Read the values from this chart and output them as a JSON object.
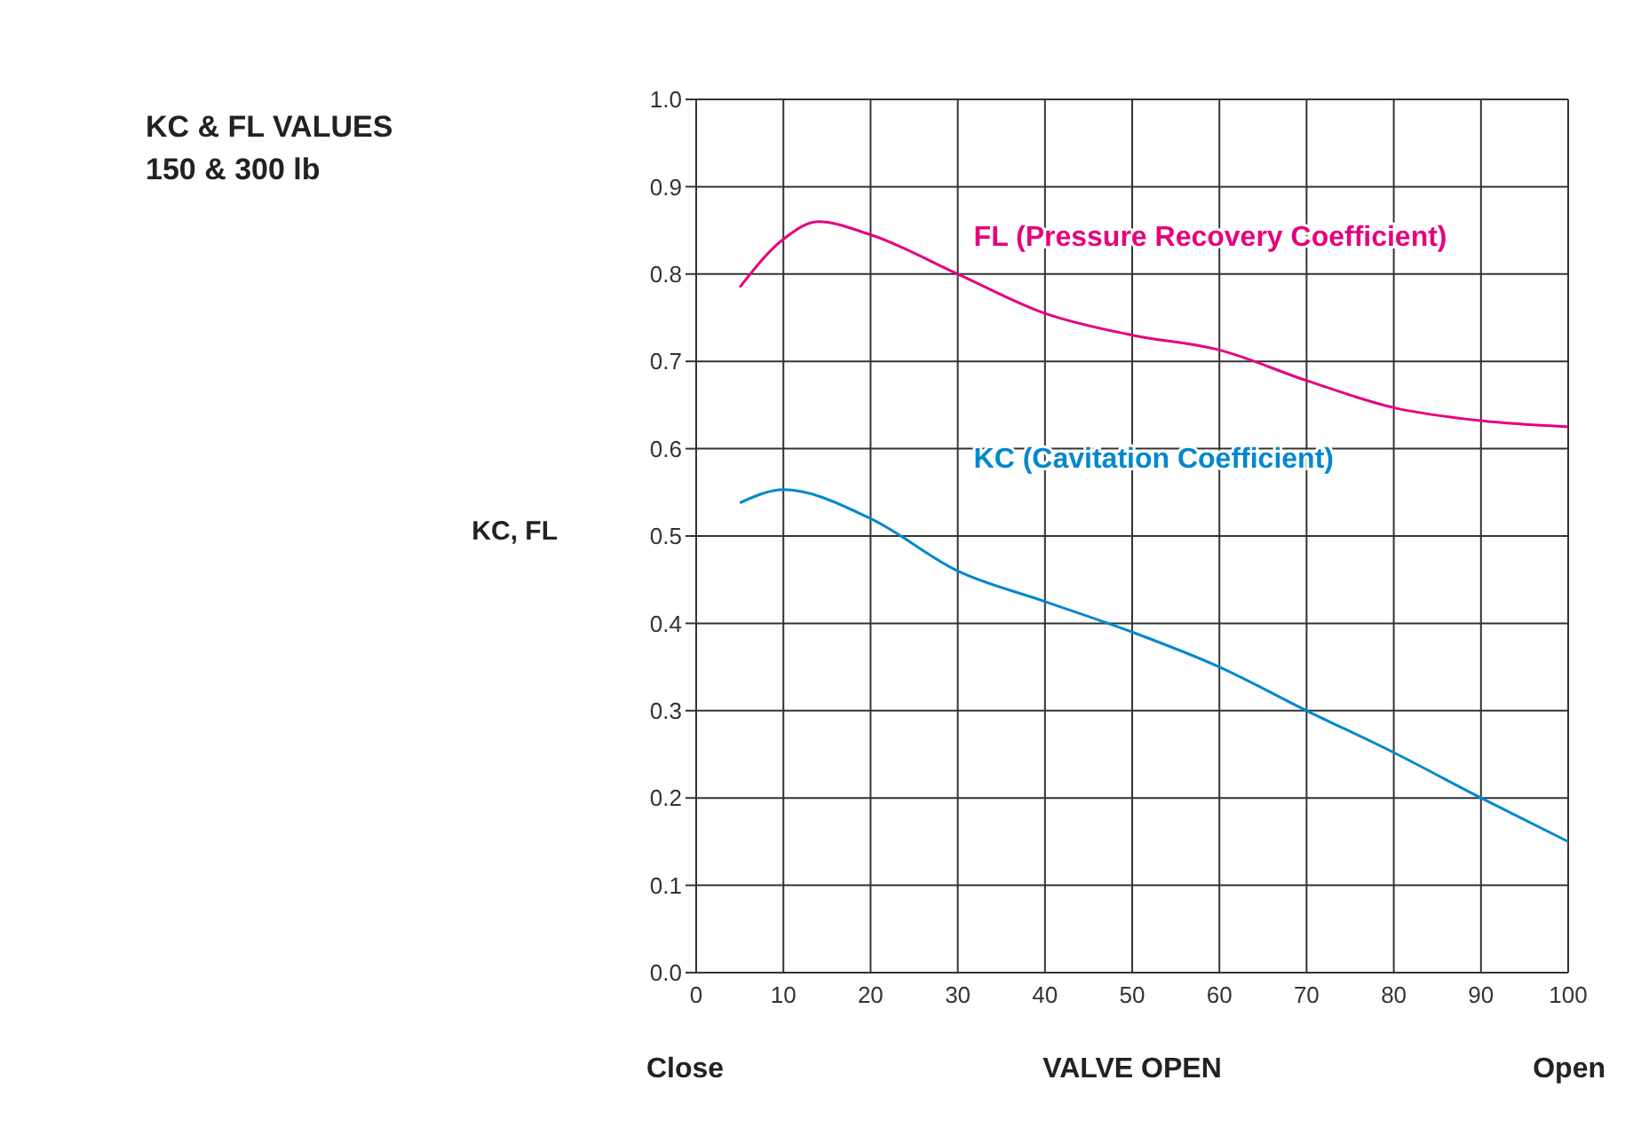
{
  "chart_data": {
    "type": "line",
    "title": "KC & FL VALUES",
    "subtitle": "150 & 300 lb",
    "xlabel": "VALVE OPEN",
    "ylabel": "KC, FL",
    "annotations": [
      "Close",
      "Open"
    ],
    "series": [
      {
        "name": "FL (Pressure Recovery Coefficient)",
        "color": "#e6007e",
        "x": [
          5,
          10,
          14,
          20,
          30,
          40,
          50,
          60,
          70,
          80,
          90,
          100
        ],
        "values": [
          0.785,
          0.84,
          0.86,
          0.845,
          0.8,
          0.755,
          0.73,
          0.713,
          0.678,
          0.647,
          0.632,
          0.625
        ]
      },
      {
        "name": "KC (Cavitation Coefficient)",
        "color": "#0088cc",
        "x": [
          5,
          10,
          20,
          30,
          40,
          50,
          60,
          70,
          80,
          90,
          100
        ],
        "values": [
          0.538,
          0.553,
          0.52,
          0.46,
          0.425,
          0.39,
          0.35,
          0.3,
          0.252,
          0.2,
          0.15
        ]
      }
    ],
    "xlim": [
      0,
      100
    ],
    "xticks": [
      0,
      10,
      20,
      30,
      40,
      50,
      60,
      70,
      80,
      90,
      100
    ],
    "ylim": [
      0,
      1
    ],
    "yticks": [
      {
        "value": 0,
        "label": "0.0"
      },
      0.1,
      0.2,
      0.3,
      0.4,
      0.5,
      0.6,
      0.7,
      0.8,
      0.9,
      {
        "value": 1,
        "label": "1.0"
      }
    ],
    "grid": true,
    "marker": "none",
    "line_style": "solid"
  }
}
